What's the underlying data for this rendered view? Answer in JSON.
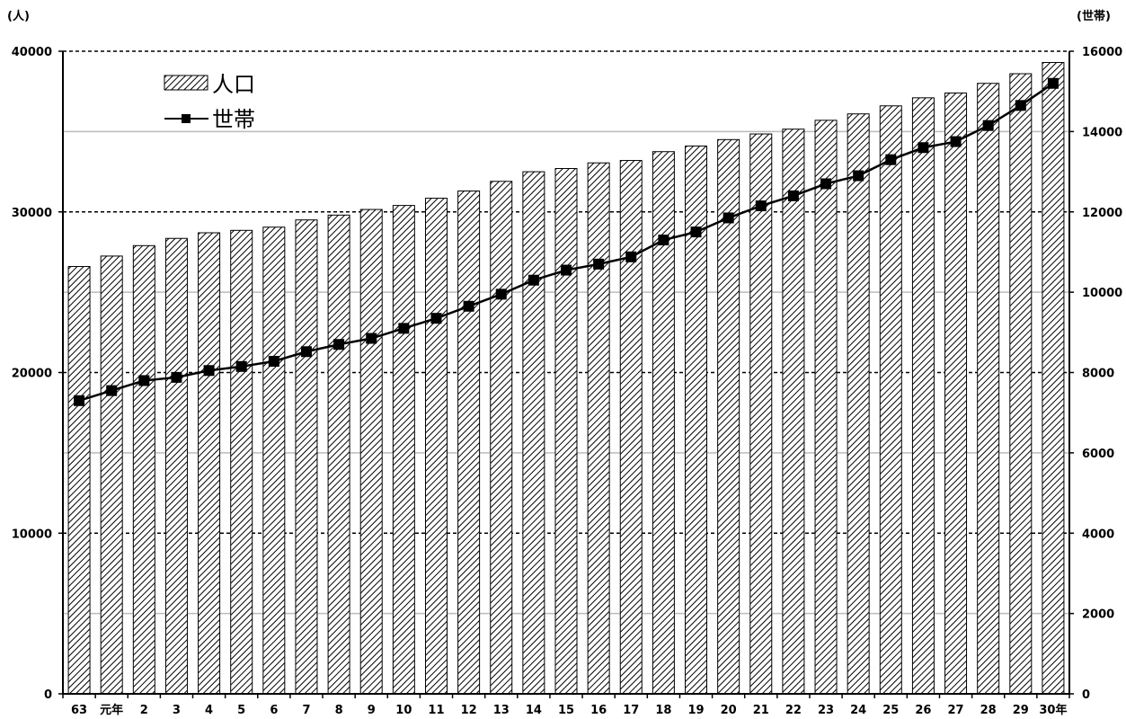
{
  "chart_data": {
    "type": "bar",
    "categories": [
      "63",
      "元年",
      "2",
      "3",
      "4",
      "5",
      "6",
      "7",
      "8",
      "9",
      "10",
      "11",
      "12",
      "13",
      "14",
      "15",
      "16",
      "17",
      "18",
      "19",
      "20",
      "21",
      "22",
      "23",
      "24",
      "25",
      "26",
      "27",
      "28",
      "29",
      "30年"
    ],
    "series": [
      {
        "name": "人口",
        "type": "bar",
        "axis": "left",
        "values": [
          26600,
          27250,
          27900,
          28350,
          28700,
          28850,
          29050,
          29500,
          29800,
          30150,
          30400,
          30850,
          31300,
          31900,
          32500,
          32700,
          33050,
          33200,
          33750,
          34100,
          34500,
          34850,
          35150,
          35700,
          36100,
          36600,
          37100,
          37400,
          38000,
          38600,
          39300
        ]
      },
      {
        "name": "世帯",
        "type": "line",
        "axis": "right",
        "values": [
          7300,
          7550,
          7800,
          7880,
          8050,
          8150,
          8280,
          8520,
          8700,
          8850,
          9100,
          9350,
          9650,
          9950,
          10300,
          10550,
          10700,
          10880,
          11300,
          11500,
          11850,
          12150,
          12400,
          12700,
          12900,
          13300,
          13600,
          13750,
          14150,
          14650,
          15200
        ]
      }
    ],
    "left_axis": {
      "unit": "(人)",
      "range": [
        0,
        40000
      ],
      "ticks": [
        "0",
        "10000",
        "20000",
        "30000",
        "40000"
      ]
    },
    "right_axis": {
      "unit": "(世帯)",
      "range": [
        0,
        16000
      ],
      "ticks": [
        "0",
        "2000",
        "4000",
        "6000",
        "8000",
        "10000",
        "12000",
        "14000",
        "16000"
      ]
    },
    "grid": true,
    "legend_position": "top-left"
  },
  "colors": {
    "bar_fill_hatch": "#000000",
    "bar_background": "#ffffff",
    "line": "#000000",
    "marker": "#000000",
    "minor_grid": "#bbbbbb",
    "major_grid": "#000000"
  }
}
